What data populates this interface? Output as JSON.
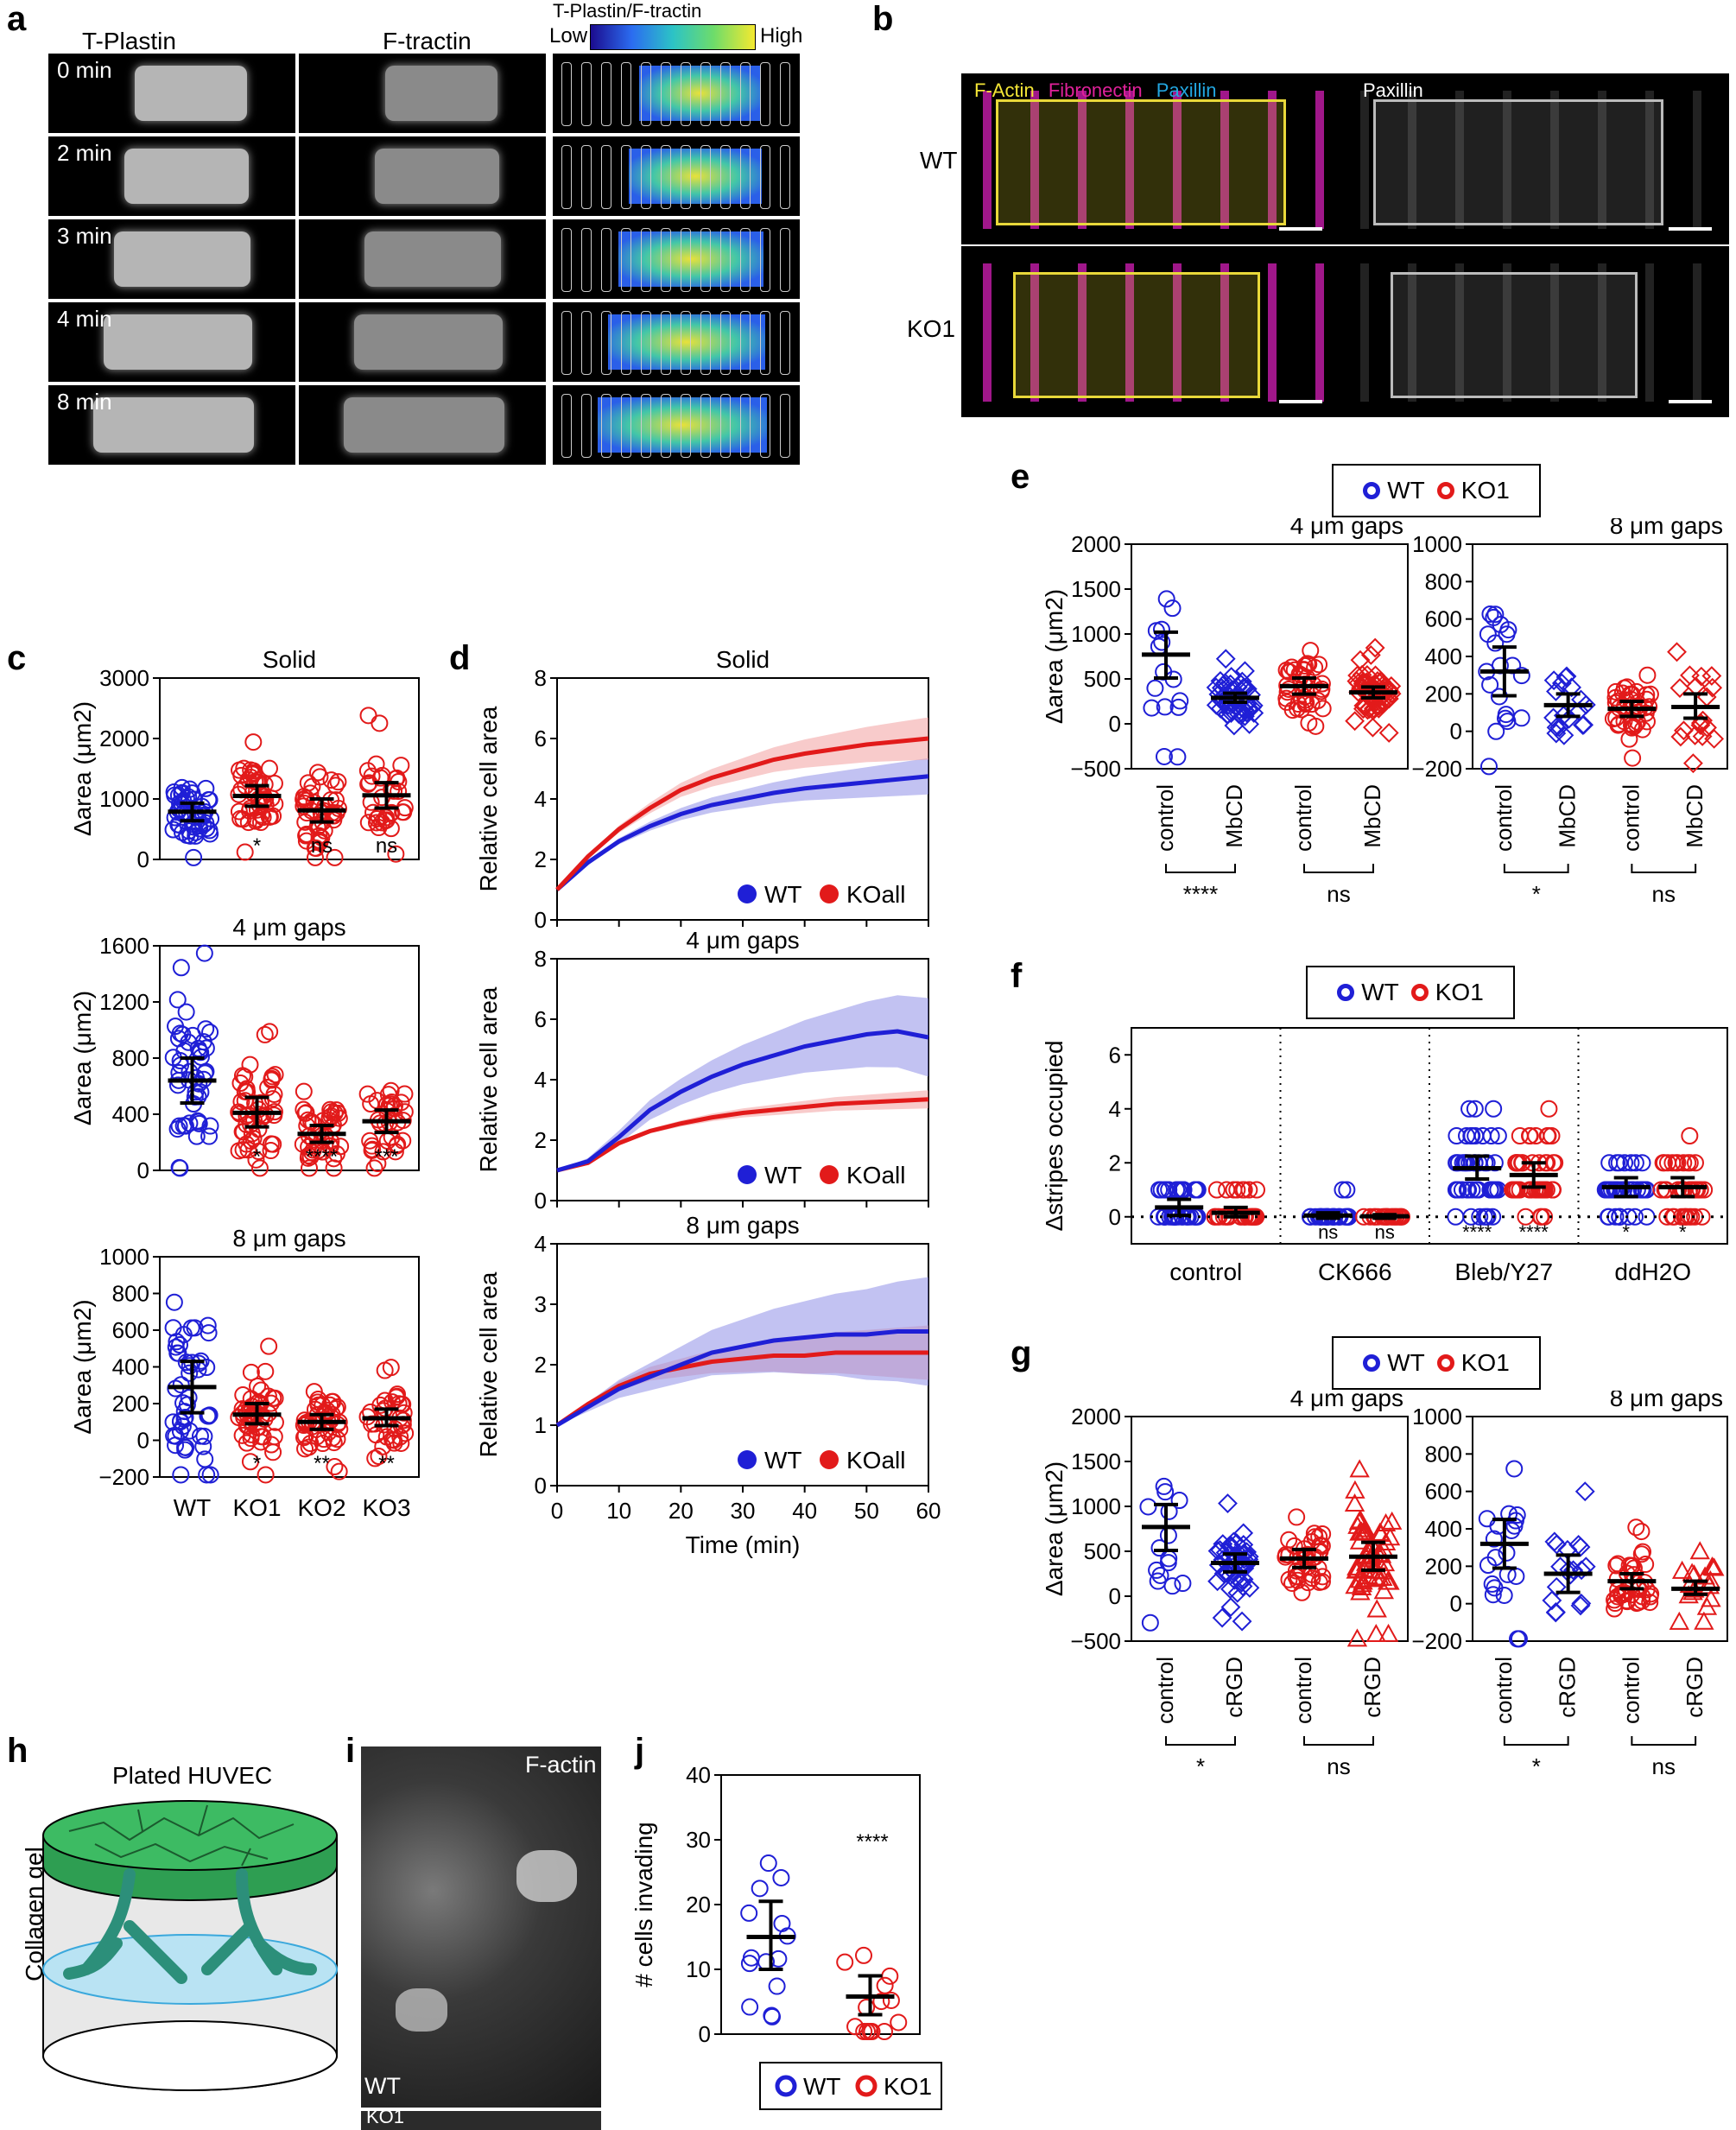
{
  "panel_labels": {
    "a": "a",
    "b": "b",
    "c": "c",
    "d": "d",
    "e": "e",
    "f": "f",
    "g": "g",
    "h": "h",
    "i": "i",
    "j": "j"
  },
  "colors": {
    "wt": "#1f1fd6",
    "ko": "#e21a1a",
    "wt_band": "#8f8fe8",
    "ko_band": "#f2a1a1"
  },
  "panel_a": {
    "col_titles": [
      "T-Plastin",
      "F-tractin",
      "T-Plastin/F-tractin"
    ],
    "colorbar_low": "Low",
    "colorbar_high": "High",
    "times": [
      "0 min",
      "2 min",
      "3 min",
      "4 min",
      "8 min"
    ]
  },
  "panel_b": {
    "rows": [
      "WT",
      "KO1"
    ],
    "stain_factin": "F-Actin",
    "stain_fibronectin": "Fibronectin",
    "stain_paxillin": "Paxillin",
    "right_title": "Paxillin"
  },
  "panel_h": {
    "title": "Plated HUVEC",
    "side": "Collagen gel"
  },
  "panel_i": {
    "stain": "F-actin",
    "top": "WT",
    "bottom": "KO1"
  },
  "legend": {
    "wt": "WT",
    "ko": "KO1",
    "ko_all": "KOall"
  },
  "chart_data": [
    {
      "id": "c-solid",
      "type": "scatter",
      "title": "Solid",
      "ylabel": "Δarea (μm2)",
      "ylim": [
        0,
        3000
      ],
      "yticks": [
        0,
        1000,
        2000,
        3000
      ],
      "categories": [
        "WT",
        "KO1",
        "KO2",
        "KO3"
      ],
      "means": [
        790,
        1050,
        810,
        1060
      ],
      "ci_low": [
        640,
        880,
        620,
        850
      ],
      "ci_high": [
        930,
        1220,
        1000,
        1270
      ],
      "significance": [
        "",
        "*",
        "ns",
        "ns"
      ]
    },
    {
      "id": "c-4um",
      "type": "scatter",
      "title": "4 μm gaps",
      "ylabel": "Δarea (μm2)",
      "ylim": [
        0,
        1600
      ],
      "yticks": [
        0,
        400,
        800,
        1200,
        1600
      ],
      "categories": [
        "WT",
        "KO1",
        "KO2",
        "KO3"
      ],
      "means": [
        640,
        410,
        260,
        350
      ],
      "ci_low": [
        480,
        310,
        200,
        270
      ],
      "ci_high": [
        800,
        520,
        320,
        430
      ],
      "significance": [
        "",
        "*",
        "****",
        "***"
      ]
    },
    {
      "id": "c-8um",
      "type": "scatter",
      "title": "8 μm gaps",
      "ylabel": "Δarea (μm2)",
      "ylim": [
        -200,
        1000
      ],
      "yticks": [
        -200,
        0,
        200,
        400,
        600,
        800,
        1000
      ],
      "categories": [
        "WT",
        "KO1",
        "KO2",
        "KO3"
      ],
      "means": [
        290,
        140,
        100,
        120
      ],
      "ci_low": [
        150,
        90,
        60,
        80
      ],
      "ci_high": [
        430,
        200,
        140,
        170
      ],
      "significance": [
        "",
        "*",
        "**",
        "**"
      ]
    },
    {
      "id": "d-solid",
      "type": "line",
      "title": "Solid",
      "ylabel": "Relative cell area",
      "xlabel": "Time (min)",
      "xlim": [
        0,
        60
      ],
      "ylim": [
        0,
        8
      ],
      "yticks": [
        0,
        2,
        4,
        6,
        8
      ],
      "x": [
        0,
        5,
        10,
        15,
        20,
        25,
        30,
        35,
        40,
        45,
        50,
        55,
        60
      ],
      "series": [
        {
          "name": "WT",
          "values": [
            1,
            1.9,
            2.6,
            3.1,
            3.5,
            3.8,
            4.0,
            4.2,
            4.35,
            4.45,
            4.55,
            4.65,
            4.75
          ],
          "band": 0.6
        },
        {
          "name": "KOall",
          "values": [
            1,
            2.1,
            3.0,
            3.7,
            4.3,
            4.7,
            5.0,
            5.3,
            5.5,
            5.65,
            5.8,
            5.9,
            6.0
          ],
          "band": 0.7
        }
      ]
    },
    {
      "id": "d-4um",
      "type": "line",
      "title": "4 μm gaps",
      "ylabel": "Relative cell area",
      "xlabel": "Time (min)",
      "xlim": [
        0,
        60
      ],
      "ylim": [
        0,
        8
      ],
      "yticks": [
        0,
        2,
        4,
        6,
        8
      ],
      "x": [
        0,
        5,
        10,
        15,
        20,
        25,
        30,
        35,
        40,
        45,
        50,
        55,
        60
      ],
      "series": [
        {
          "name": "WT",
          "values": [
            1,
            1.3,
            2.1,
            3.0,
            3.6,
            4.1,
            4.5,
            4.8,
            5.1,
            5.3,
            5.5,
            5.6,
            5.4
          ],
          "band": 1.3
        },
        {
          "name": "KOall",
          "values": [
            1,
            1.25,
            1.9,
            2.3,
            2.55,
            2.75,
            2.9,
            3.0,
            3.1,
            3.2,
            3.25,
            3.3,
            3.35
          ],
          "band": 0.3
        }
      ]
    },
    {
      "id": "d-8um",
      "type": "line",
      "title": "8 μm gaps",
      "ylabel": "Relative cell area",
      "xlabel": "Time (min)",
      "xlim": [
        0,
        60
      ],
      "ylim": [
        0,
        4
      ],
      "yticks": [
        0,
        1,
        2,
        3,
        4
      ],
      "xticks": [
        0,
        10,
        20,
        30,
        40,
        50,
        60
      ],
      "x": [
        0,
        5,
        10,
        15,
        20,
        25,
        30,
        35,
        40,
        45,
        50,
        55,
        60
      ],
      "series": [
        {
          "name": "WT",
          "values": [
            1,
            1.3,
            1.6,
            1.8,
            2.0,
            2.2,
            2.3,
            2.4,
            2.45,
            2.5,
            2.5,
            2.55,
            2.55
          ],
          "band": 0.9
        },
        {
          "name": "KOall",
          "values": [
            1,
            1.35,
            1.65,
            1.85,
            1.95,
            2.05,
            2.1,
            2.15,
            2.15,
            2.2,
            2.2,
            2.2,
            2.2
          ],
          "band": 0.45
        }
      ]
    },
    {
      "id": "e-4um",
      "type": "scatter",
      "title": "4 μm gaps",
      "ylabel": "Δarea (μm2)",
      "ylim": [
        -500,
        2000
      ],
      "yticks": [
        -500,
        0,
        500,
        1000,
        1500,
        2000
      ],
      "categories": [
        "control",
        "MbCD",
        "control",
        "MbCD"
      ],
      "means": [
        770,
        290,
        420,
        350
      ],
      "ci_low": [
        510,
        240,
        330,
        290
      ],
      "ci_high": [
        1020,
        340,
        510,
        410
      ],
      "brackets": [
        "****",
        "ns"
      ]
    },
    {
      "id": "e-8um",
      "type": "scatter",
      "title": "8 μm gaps",
      "ylabel": "",
      "ylim": [
        -200,
        1000
      ],
      "yticks": [
        -200,
        0,
        200,
        400,
        600,
        800,
        1000
      ],
      "categories": [
        "control",
        "MbCD",
        "control",
        "MbCD"
      ],
      "means": [
        320,
        140,
        120,
        130
      ],
      "ci_low": [
        190,
        80,
        80,
        70
      ],
      "ci_high": [
        450,
        200,
        160,
        200
      ],
      "brackets": [
        "*",
        "ns"
      ]
    },
    {
      "id": "f",
      "type": "scatter",
      "title": "",
      "ylabel": "Δstripes occupied",
      "ylim": [
        -1,
        7
      ],
      "yticks": [
        0,
        2,
        4,
        6
      ],
      "groups": [
        "control",
        "CK666",
        "Bleb/Y27",
        "ddH2O"
      ],
      "means": [
        0.35,
        0.15,
        0.05,
        0.02,
        1.8,
        1.55,
        1.1,
        1.1
      ],
      "ci_low": [
        0.05,
        0.0,
        -0.05,
        -0.05,
        1.4,
        1.1,
        0.75,
        0.75
      ],
      "ci_high": [
        0.65,
        0.35,
        0.15,
        0.08,
        2.25,
        2.0,
        1.45,
        1.45
      ],
      "significance": [
        "",
        "",
        "ns",
        "ns",
        "****",
        "****",
        "*",
        "*"
      ]
    },
    {
      "id": "g-4um",
      "type": "scatter",
      "title": "4 μm gaps",
      "ylabel": "Δarea (μm2)",
      "ylim": [
        -500,
        2000
      ],
      "yticks": [
        -500,
        0,
        500,
        1000,
        1500,
        2000
      ],
      "categories": [
        "control",
        "cRGD",
        "control",
        "cRGD"
      ],
      "means": [
        770,
        370,
        420,
        440
      ],
      "ci_low": [
        510,
        270,
        320,
        290
      ],
      "ci_high": [
        1020,
        470,
        520,
        600
      ],
      "brackets": [
        "*",
        "ns"
      ]
    },
    {
      "id": "g-8um",
      "type": "scatter",
      "title": "8 μm gaps",
      "ylabel": "",
      "ylim": [
        -200,
        1000
      ],
      "yticks": [
        -200,
        0,
        200,
        400,
        600,
        800,
        1000
      ],
      "categories": [
        "control",
        "cRGD",
        "control",
        "cRGD"
      ],
      "means": [
        320,
        160,
        120,
        80
      ],
      "ci_low": [
        190,
        60,
        80,
        50
      ],
      "ci_high": [
        450,
        260,
        160,
        120
      ],
      "brackets": [
        "*",
        "ns"
      ]
    },
    {
      "id": "j",
      "type": "scatter",
      "title": "",
      "ylabel": "# cells invading",
      "ylim": [
        0,
        40
      ],
      "yticks": [
        0,
        10,
        20,
        30,
        40
      ],
      "categories": [
        "WT",
        "KO1"
      ],
      "means": [
        15,
        5.8
      ],
      "ci_low": [
        10,
        3
      ],
      "ci_high": [
        20.5,
        9
      ],
      "significance": [
        "",
        "****"
      ]
    }
  ]
}
